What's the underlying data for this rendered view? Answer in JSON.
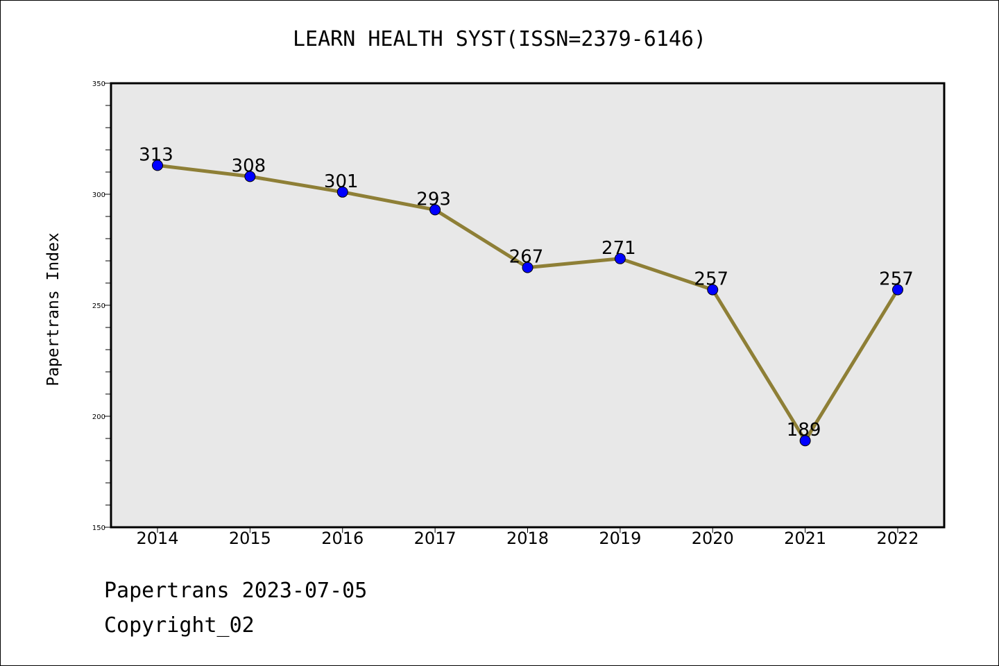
{
  "colors": {
    "plot_background": "#e8e8e8",
    "line": "#8e7f36",
    "marker": "#0000ff",
    "axes": "#000000"
  },
  "chart_data": {
    "type": "line",
    "title": "LEARN HEALTH SYST(ISSN=2379-6146)",
    "xlabel": "",
    "ylabel": "Papertrans Index",
    "categories": [
      "2014",
      "2015",
      "2016",
      "2017",
      "2018",
      "2019",
      "2020",
      "2021",
      "2022"
    ],
    "series": [
      {
        "name": "Papertrans Index",
        "values": [
          313,
          308,
          301,
          293,
          267,
          271,
          257,
          189,
          257
        ]
      }
    ],
    "data_labels": [
      "313",
      "308",
      "301",
      "293",
      "267",
      "271",
      "257",
      "189",
      "257"
    ],
    "ylim": [
      150,
      350
    ],
    "y_ticks": [
      150,
      200,
      250,
      300,
      350
    ],
    "y_tick_labels": [
      "150",
      "200",
      "250",
      "300",
      "350"
    ],
    "y_minor_step": 10,
    "grid": false,
    "legend": "none"
  },
  "footer": {
    "line1": "Papertrans 2023-07-05",
    "line2": "Copyright_02"
  }
}
